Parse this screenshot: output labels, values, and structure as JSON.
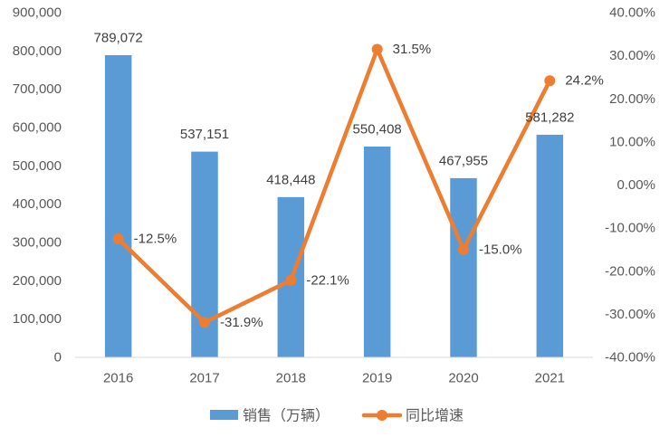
{
  "chart_data": {
    "type": "bar",
    "categories": [
      "2016",
      "2017",
      "2018",
      "2019",
      "2020",
      "2021"
    ],
    "series": [
      {
        "name": "销售（万辆）",
        "type": "bar",
        "axis": "left",
        "color": "#5B9BD5",
        "values": [
          789072,
          537151,
          418448,
          550408,
          467955,
          581282
        ],
        "labels": [
          "789,072",
          "537,151",
          "418,448",
          "550,408",
          "467,955",
          "581,282"
        ]
      },
      {
        "name": "同比增速",
        "type": "line",
        "axis": "right",
        "color": "#ED7D31",
        "values": [
          -12.5,
          -31.9,
          -22.1,
          31.5,
          -15.0,
          24.2
        ],
        "labels": [
          "-12.5%",
          "-31.9%",
          "-22.1%",
          "31.5%",
          "-15.0%",
          "24.2%"
        ]
      }
    ],
    "y_left": {
      "range": [
        0,
        900000
      ],
      "tick_labels": [
        "0",
        "100,000",
        "200,000",
        "300,000",
        "400,000",
        "500,000",
        "600,000",
        "700,000",
        "800,000",
        "900,000"
      ]
    },
    "y_right": {
      "range": [
        -40,
        40
      ],
      "tick_labels": [
        "-40.00%",
        "-30.00%",
        "-20.00%",
        "-10.00%",
        "0.00%",
        "10.00%",
        "20.00%",
        "30.00%",
        "40.00%"
      ]
    },
    "grid": false,
    "legend": "bottom"
  }
}
